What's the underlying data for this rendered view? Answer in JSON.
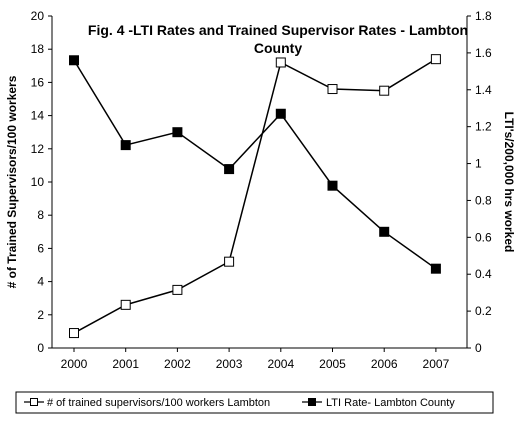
{
  "chart_data": {
    "type": "line",
    "title_line1": "Fig. 4 -LTI Rates and Trained Supervisor Rates - Lambton",
    "title_line2": "County",
    "x": [
      "2000",
      "2001",
      "2002",
      "2003",
      "2004",
      "2005",
      "2006",
      "2007"
    ],
    "ylabel_left": "# of Trained Supervisors/100 workers",
    "ylabel_right": "LTI's/200,000 hrs worked",
    "ylim_left": [
      0,
      20
    ],
    "ylim_right": [
      0,
      1.8
    ],
    "yticks_left": [
      "0",
      "2",
      "4",
      "6",
      "8",
      "10",
      "12",
      "14",
      "16",
      "18",
      "20"
    ],
    "yticks_right": [
      "0",
      "0.2",
      "0.4",
      "0.6",
      "0.8",
      "1",
      "1.2",
      "1.4",
      "1.6",
      "1.8"
    ],
    "series": [
      {
        "name": "# of trained supervisors/100 workers Lambton",
        "axis": "left",
        "marker": "open-square",
        "values": [
          0.9,
          2.6,
          3.5,
          5.2,
          17.2,
          15.6,
          15.5,
          17.4
        ]
      },
      {
        "name": "LTI Rate- Lambton County",
        "axis": "right",
        "marker": "filled-square",
        "values": [
          1.56,
          1.1,
          1.17,
          0.97,
          1.27,
          0.88,
          0.63,
          0.43
        ]
      }
    ],
    "legend_position": "bottom",
    "colors": {
      "line": "#000000",
      "open_marker_fill": "#ffffff",
      "filled_marker_fill": "#000000"
    }
  }
}
